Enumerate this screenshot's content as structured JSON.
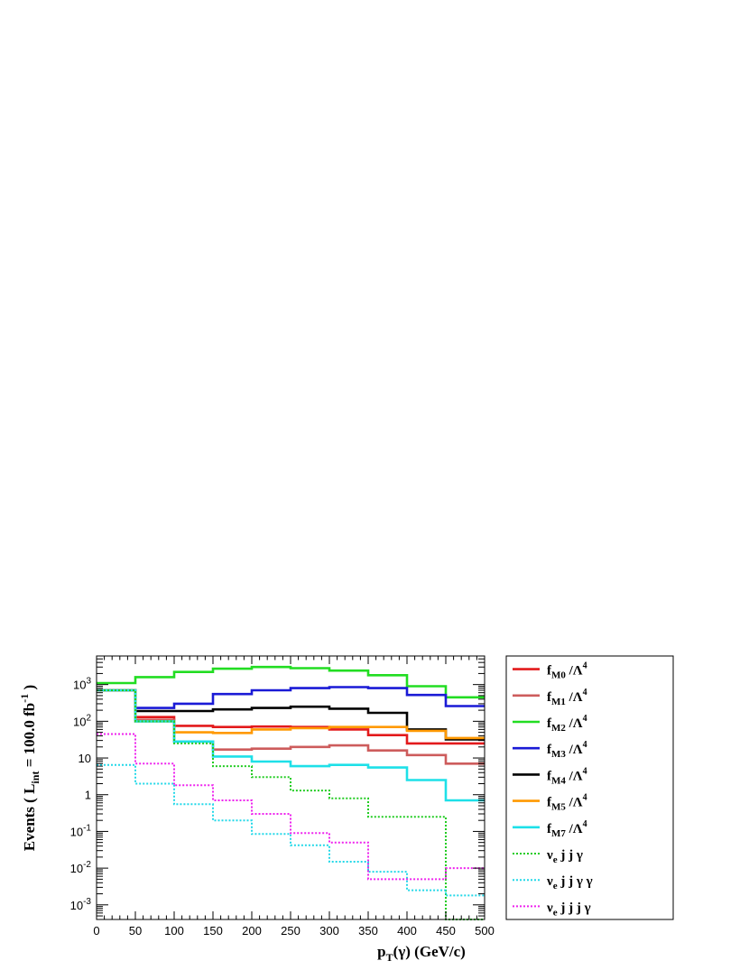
{
  "chart_data": {
    "type": "line",
    "style": "step-histogram",
    "x_edges": [
      0,
      50,
      100,
      150,
      200,
      250,
      300,
      350,
      400,
      450,
      500
    ],
    "xlim": [
      0,
      500
    ],
    "ylim": [
      0.0004,
      6000
    ],
    "yscale": "log",
    "x_ticks": [
      "0",
      "50",
      "100",
      "150",
      "200",
      "250",
      "300",
      "350",
      "400",
      "450",
      "500"
    ],
    "y_ticks": [
      {
        "value": 0.001,
        "base": "10",
        "exp": "-3"
      },
      {
        "value": 0.01,
        "base": "10",
        "exp": "-2"
      },
      {
        "value": 0.1,
        "base": "10",
        "exp": "-1"
      },
      {
        "value": 1,
        "base": "1",
        "exp": ""
      },
      {
        "value": 10,
        "base": "10",
        "exp": ""
      },
      {
        "value": 100,
        "base": "10",
        "exp": "2"
      },
      {
        "value": 1000,
        "base": "10",
        "exp": "3"
      }
    ],
    "xlabel": {
      "main": "p",
      "sub": "T",
      "rest": "(γ) (GeV/c)"
    },
    "ylabel": {
      "prefix": "Events  ( L",
      "sub": "int",
      "mid": " = 100.0 fb",
      "sup": "-1",
      "suffix": " )"
    },
    "grid": false,
    "legend_position": "right",
    "series": [
      {
        "label": "f",
        "sub": "M0",
        "tail": " /Λ",
        "sup": "4",
        "color": "#e31a1c",
        "dashed": false,
        "values": [
          700,
          130,
          75,
          70,
          72,
          70,
          60,
          42,
          25,
          25
        ]
      },
      {
        "label": "f",
        "sub": "M1",
        "tail": " /Λ",
        "sup": "4",
        "color": "#cd5c5c",
        "dashed": false,
        "values": [
          700,
          110,
          28,
          17,
          18,
          20,
          22,
          16,
          12,
          7
        ]
      },
      {
        "label": "f",
        "sub": "M2",
        "tail": " /Λ",
        "sup": "4",
        "color": "#22dd22",
        "dashed": false,
        "values": [
          1100,
          1600,
          2200,
          2700,
          3000,
          2800,
          2400,
          1800,
          900,
          450
        ]
      },
      {
        "label": "f",
        "sub": "M3",
        "tail": " /Λ",
        "sup": "4",
        "color": "#1a1ad6",
        "dashed": false,
        "values": [
          700,
          230,
          300,
          550,
          700,
          800,
          850,
          800,
          520,
          260
        ]
      },
      {
        "label": "f",
        "sub": "M4",
        "tail": " /Λ",
        "sup": "4",
        "color": "#000000",
        "dashed": false,
        "values": [
          700,
          190,
          190,
          210,
          230,
          250,
          220,
          170,
          60,
          32
        ]
      },
      {
        "label": "f",
        "sub": "M5",
        "tail": " /Λ",
        "sup": "4",
        "color": "#ff9900",
        "dashed": false,
        "values": [
          700,
          100,
          50,
          48,
          60,
          65,
          70,
          70,
          55,
          35
        ]
      },
      {
        "label": "f",
        "sub": "M7",
        "tail": " /Λ",
        "sup": "4",
        "color": "#1ee0e8",
        "dashed": false,
        "values": [
          700,
          100,
          28,
          11,
          8,
          6,
          6.5,
          5.5,
          2.5,
          0.7
        ]
      },
      {
        "label": "ν",
        "sub": "e",
        "tail": " j j  γ",
        "sup": "",
        "color": "#22cc22",
        "dashed": true,
        "values": [
          700,
          100,
          25,
          6,
          3,
          1.3,
          0.8,
          0.25,
          0.25,
          0.0003
        ]
      },
      {
        "label": "ν",
        "sub": "e",
        "tail": " j j  γ  γ",
        "sup": "",
        "color": "#22d8e8",
        "dashed": true,
        "values": [
          6.5,
          2,
          0.55,
          0.2,
          0.085,
          0.042,
          0.015,
          0.008,
          0.0025,
          0.0018
        ]
      },
      {
        "label": "ν",
        "sub": "e",
        "tail": " j j j  γ",
        "sup": "",
        "color": "#ee22ee",
        "dashed": true,
        "values": [
          45,
          7,
          1.8,
          0.7,
          0.3,
          0.09,
          0.05,
          0.005,
          0.005,
          0.01
        ]
      }
    ]
  }
}
